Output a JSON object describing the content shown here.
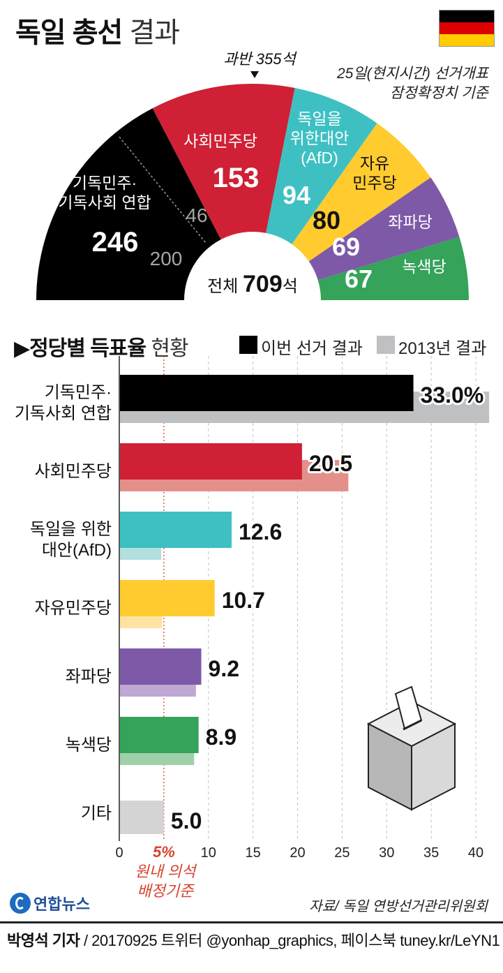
{
  "title": {
    "main": "독일 총선",
    "light": "결과"
  },
  "flag_colors": [
    "#000000",
    "#dd0000",
    "#ffcc00"
  ],
  "parliament": {
    "majority_label": "과반 355석",
    "note_lines": [
      "25일(현지시간) 선거개표",
      "잠정확정치 기준"
    ],
    "total_prefix": "전체",
    "total_value": "709",
    "total_suffix": "석",
    "parties": [
      {
        "name_lines": [
          "기독민주·",
          "기독사회 연합"
        ],
        "seats": 246,
        "seats_label": "246",
        "sub_values": [
          "46",
          "200"
        ],
        "color": "#000000",
        "text_color": "#ffffff"
      },
      {
        "name_lines": [
          "사회민주당"
        ],
        "seats": 153,
        "seats_label": "153",
        "color": "#cf2035",
        "text_color": "#ffffff"
      },
      {
        "name_lines": [
          "독일을",
          "위한대안",
          "(AfD)"
        ],
        "seats": 94,
        "seats_label": "94",
        "color": "#3ec0c3",
        "text_color": "#ffffff"
      },
      {
        "name_lines": [
          "자유",
          "민주당"
        ],
        "seats": 80,
        "seats_label": "80",
        "color": "#ffcb2f",
        "text_color": "#111111"
      },
      {
        "name_lines": [
          "좌파당"
        ],
        "seats": 69,
        "seats_label": "69",
        "color": "#7e59a8",
        "text_color": "#ffffff"
      },
      {
        "name_lines": [
          "녹색당"
        ],
        "seats": 67,
        "seats_label": "67",
        "color": "#35a35a",
        "text_color": "#ffffff"
      }
    ]
  },
  "section": {
    "title_bold": "정당별 득표율",
    "title_light": "현황"
  },
  "legend": {
    "current": "이번 선거 결과",
    "previous": "2013년 결과"
  },
  "chart_data": {
    "type": "bar",
    "orientation": "horizontal",
    "categories": [
      [
        "기독민주·",
        "기독사회 연합"
      ],
      [
        "사회민주당"
      ],
      [
        "독일을 위한",
        "대안(AfD)"
      ],
      [
        "자유민주당"
      ],
      [
        "좌파당"
      ],
      [
        "녹색당"
      ],
      [
        "기타"
      ]
    ],
    "series": [
      {
        "name": "이번 선거 결과",
        "values": [
          33.0,
          20.5,
          12.6,
          10.7,
          9.2,
          8.9,
          5.0
        ],
        "colors": [
          "#000000",
          "#cf2035",
          "#3ec0c3",
          "#ffcb2f",
          "#7e59a8",
          "#35a35a",
          "#d4d4d4"
        ]
      },
      {
        "name": "2013년 결과",
        "values": [
          41.5,
          25.7,
          4.7,
          4.8,
          8.6,
          8.4,
          null
        ],
        "colors": [
          "#bfc0c2",
          "#e4908a",
          "#b2e0e0",
          "#ffe3a0",
          "#bfa8d4",
          "#9fd0a8",
          null
        ]
      }
    ],
    "value_labels": [
      "33.0%",
      "20.5",
      "12.6",
      "10.7",
      "9.2",
      "8.9",
      "5.0"
    ],
    "xlim": [
      0,
      42
    ],
    "xticks": [
      0,
      5,
      10,
      15,
      20,
      25,
      30,
      35,
      40
    ],
    "xtick_labels": [
      "0",
      "5%",
      "10",
      "15",
      "20",
      "25",
      "30",
      "35",
      "40"
    ],
    "reference_line": {
      "value": 5,
      "label_lines": [
        "원내 의석",
        "배정기준"
      ],
      "color": "#d9422f"
    },
    "grid": "vertical dashed"
  },
  "source": "자료/ 독일 연방선거관리위원회",
  "logo_text": "연합뉴스",
  "credit": {
    "reporter": "박영석 기자",
    "rest": " / 20170925  트위터 @yonhap_graphics, 페이스북 tuney.kr/LeYN1"
  }
}
